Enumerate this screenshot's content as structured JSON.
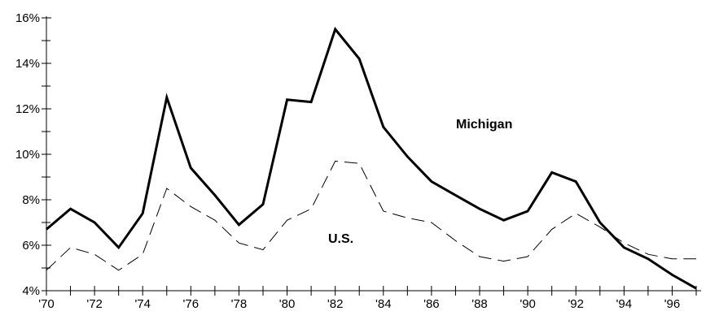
{
  "chart_data": {
    "type": "line",
    "x": [
      1970,
      1971,
      1972,
      1973,
      1974,
      1975,
      1976,
      1977,
      1978,
      1979,
      1980,
      1981,
      1982,
      1983,
      1984,
      1985,
      1986,
      1987,
      1988,
      1989,
      1990,
      1991,
      1992,
      1993,
      1994,
      1995,
      1996,
      1997
    ],
    "x_tick_labels": [
      "'70",
      "'72",
      "'74",
      "'76",
      "'78",
      "'80",
      "'82",
      "'84",
      "'86",
      "'88",
      "'90",
      "'92",
      "'94",
      "'96"
    ],
    "y_tick_labels": [
      "4%",
      "6%",
      "8%",
      "10%",
      "12%",
      "14%",
      "16%"
    ],
    "ylim": [
      4,
      16
    ],
    "xlim": [
      1970,
      1997
    ],
    "grid": false,
    "series": [
      {
        "name": "Michigan",
        "style": "solid",
        "color": "#000000",
        "values": [
          6.7,
          7.6,
          7.0,
          5.9,
          7.4,
          12.5,
          9.4,
          8.2,
          6.9,
          7.8,
          12.4,
          12.3,
          15.5,
          14.2,
          11.2,
          9.9,
          8.8,
          8.2,
          7.6,
          7.1,
          7.5,
          9.2,
          8.8,
          7.0,
          5.9,
          5.4,
          4.7,
          4.1
        ]
      },
      {
        "name": "U.S.",
        "style": "dashed",
        "color": "#000000",
        "values": [
          4.9,
          5.9,
          5.6,
          4.9,
          5.6,
          8.5,
          7.7,
          7.1,
          6.1,
          5.8,
          7.1,
          7.6,
          9.7,
          9.6,
          7.5,
          7.2,
          7.0,
          6.2,
          5.5,
          5.3,
          5.5,
          6.7,
          7.4,
          6.8,
          6.1,
          5.6,
          5.4,
          5.4
        ]
      }
    ]
  }
}
